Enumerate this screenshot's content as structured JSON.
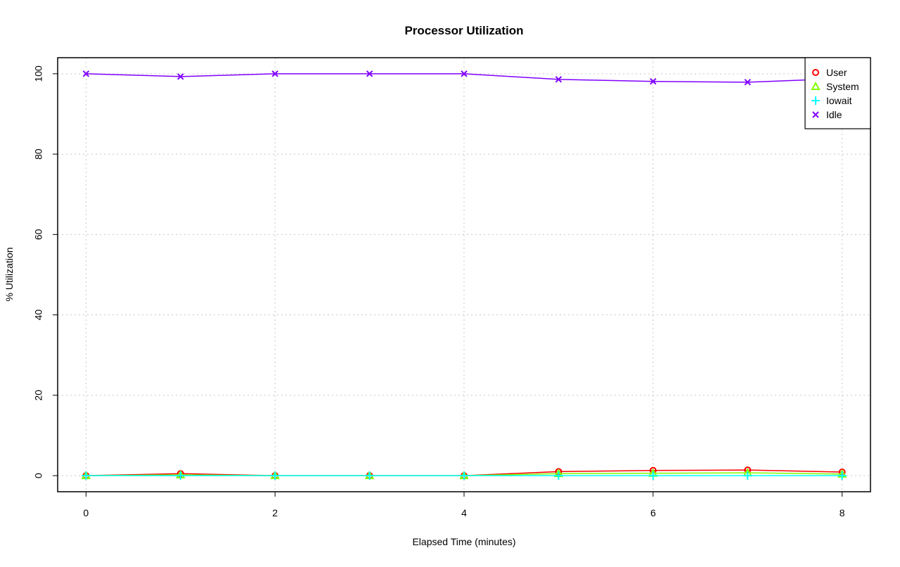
{
  "chart_data": {
    "type": "line",
    "title": "Processor Utilization",
    "xlabel": "Elapsed Time (minutes)",
    "ylabel": "% Utilization",
    "x": [
      0,
      1,
      2,
      3,
      4,
      5,
      6,
      7,
      8
    ],
    "xlim": [
      -0.3,
      8.3
    ],
    "ylim": [
      -4,
      104
    ],
    "xticks": [
      0,
      2,
      4,
      6,
      8
    ],
    "yticks": [
      0,
      20,
      40,
      60,
      80,
      100
    ],
    "grid": true,
    "legend_position": "top-right",
    "series": [
      {
        "name": "User",
        "color": "#ff0000",
        "marker": "circle",
        "values": [
          0,
          0.5,
          0,
          0,
          0,
          1.0,
          1.3,
          1.4,
          0.9
        ]
      },
      {
        "name": "System",
        "color": "#80ff00",
        "marker": "triangle",
        "values": [
          0,
          0.2,
          0,
          0,
          0,
          0.5,
          0.6,
          0.7,
          0.4
        ]
      },
      {
        "name": "Iowait",
        "color": "#00ffff",
        "marker": "plus",
        "values": [
          0,
          0,
          0,
          0,
          0,
          0,
          0,
          0,
          0
        ]
      },
      {
        "name": "Idle",
        "color": "#8000ff",
        "marker": "cross",
        "values": [
          100,
          99.3,
          100,
          100,
          100,
          98.6,
          98.1,
          97.9,
          98.8
        ]
      }
    ]
  }
}
